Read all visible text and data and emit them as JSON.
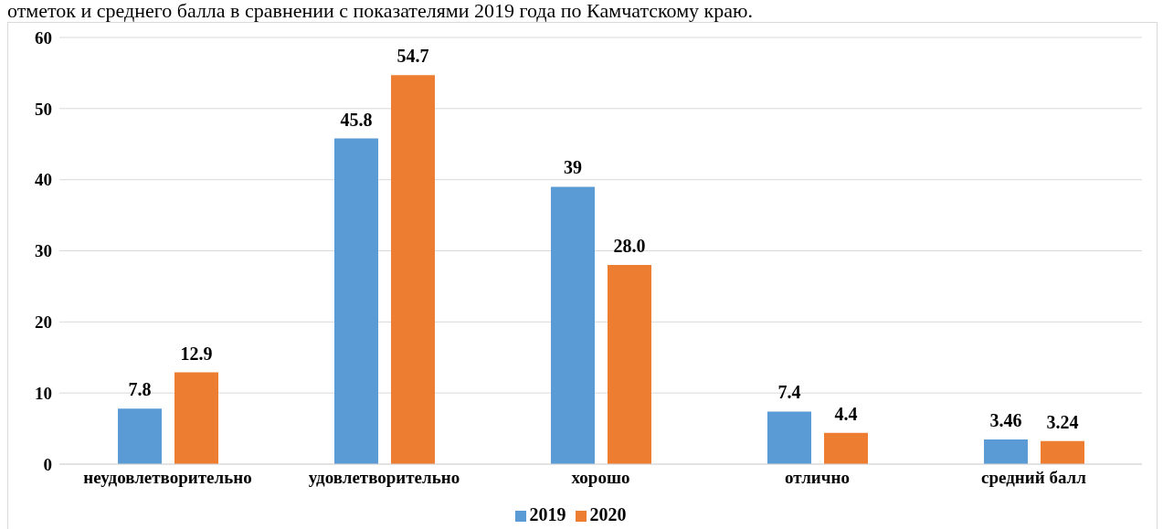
{
  "chart_data": {
    "type": "bar",
    "title": "отметок и среднего балла в сравнении с показателями 2019 года по Камчатскому краю.",
    "categories": [
      "неудовлетворительно",
      "удовлетворительно",
      "хорошо",
      "отлично",
      "средний балл"
    ],
    "series": [
      {
        "name": "2019",
        "color": "#5b9bd5",
        "values": [
          7.8,
          45.8,
          39,
          7.4,
          3.46
        ],
        "value_labels": [
          "7.8",
          "45.8",
          "39",
          "7.4",
          "3.46"
        ]
      },
      {
        "name": "2020",
        "color": "#ed7d31",
        "values": [
          12.9,
          54.7,
          28.0,
          4.4,
          3.24
        ],
        "value_labels": [
          "12.9",
          "54.7",
          "28.0",
          "4.4",
          "3.24"
        ]
      }
    ],
    "ylim": [
      0,
      60
    ],
    "yticks": [
      0,
      10,
      20,
      30,
      40,
      50,
      60
    ],
    "grid": "y",
    "legend": "bottom"
  }
}
